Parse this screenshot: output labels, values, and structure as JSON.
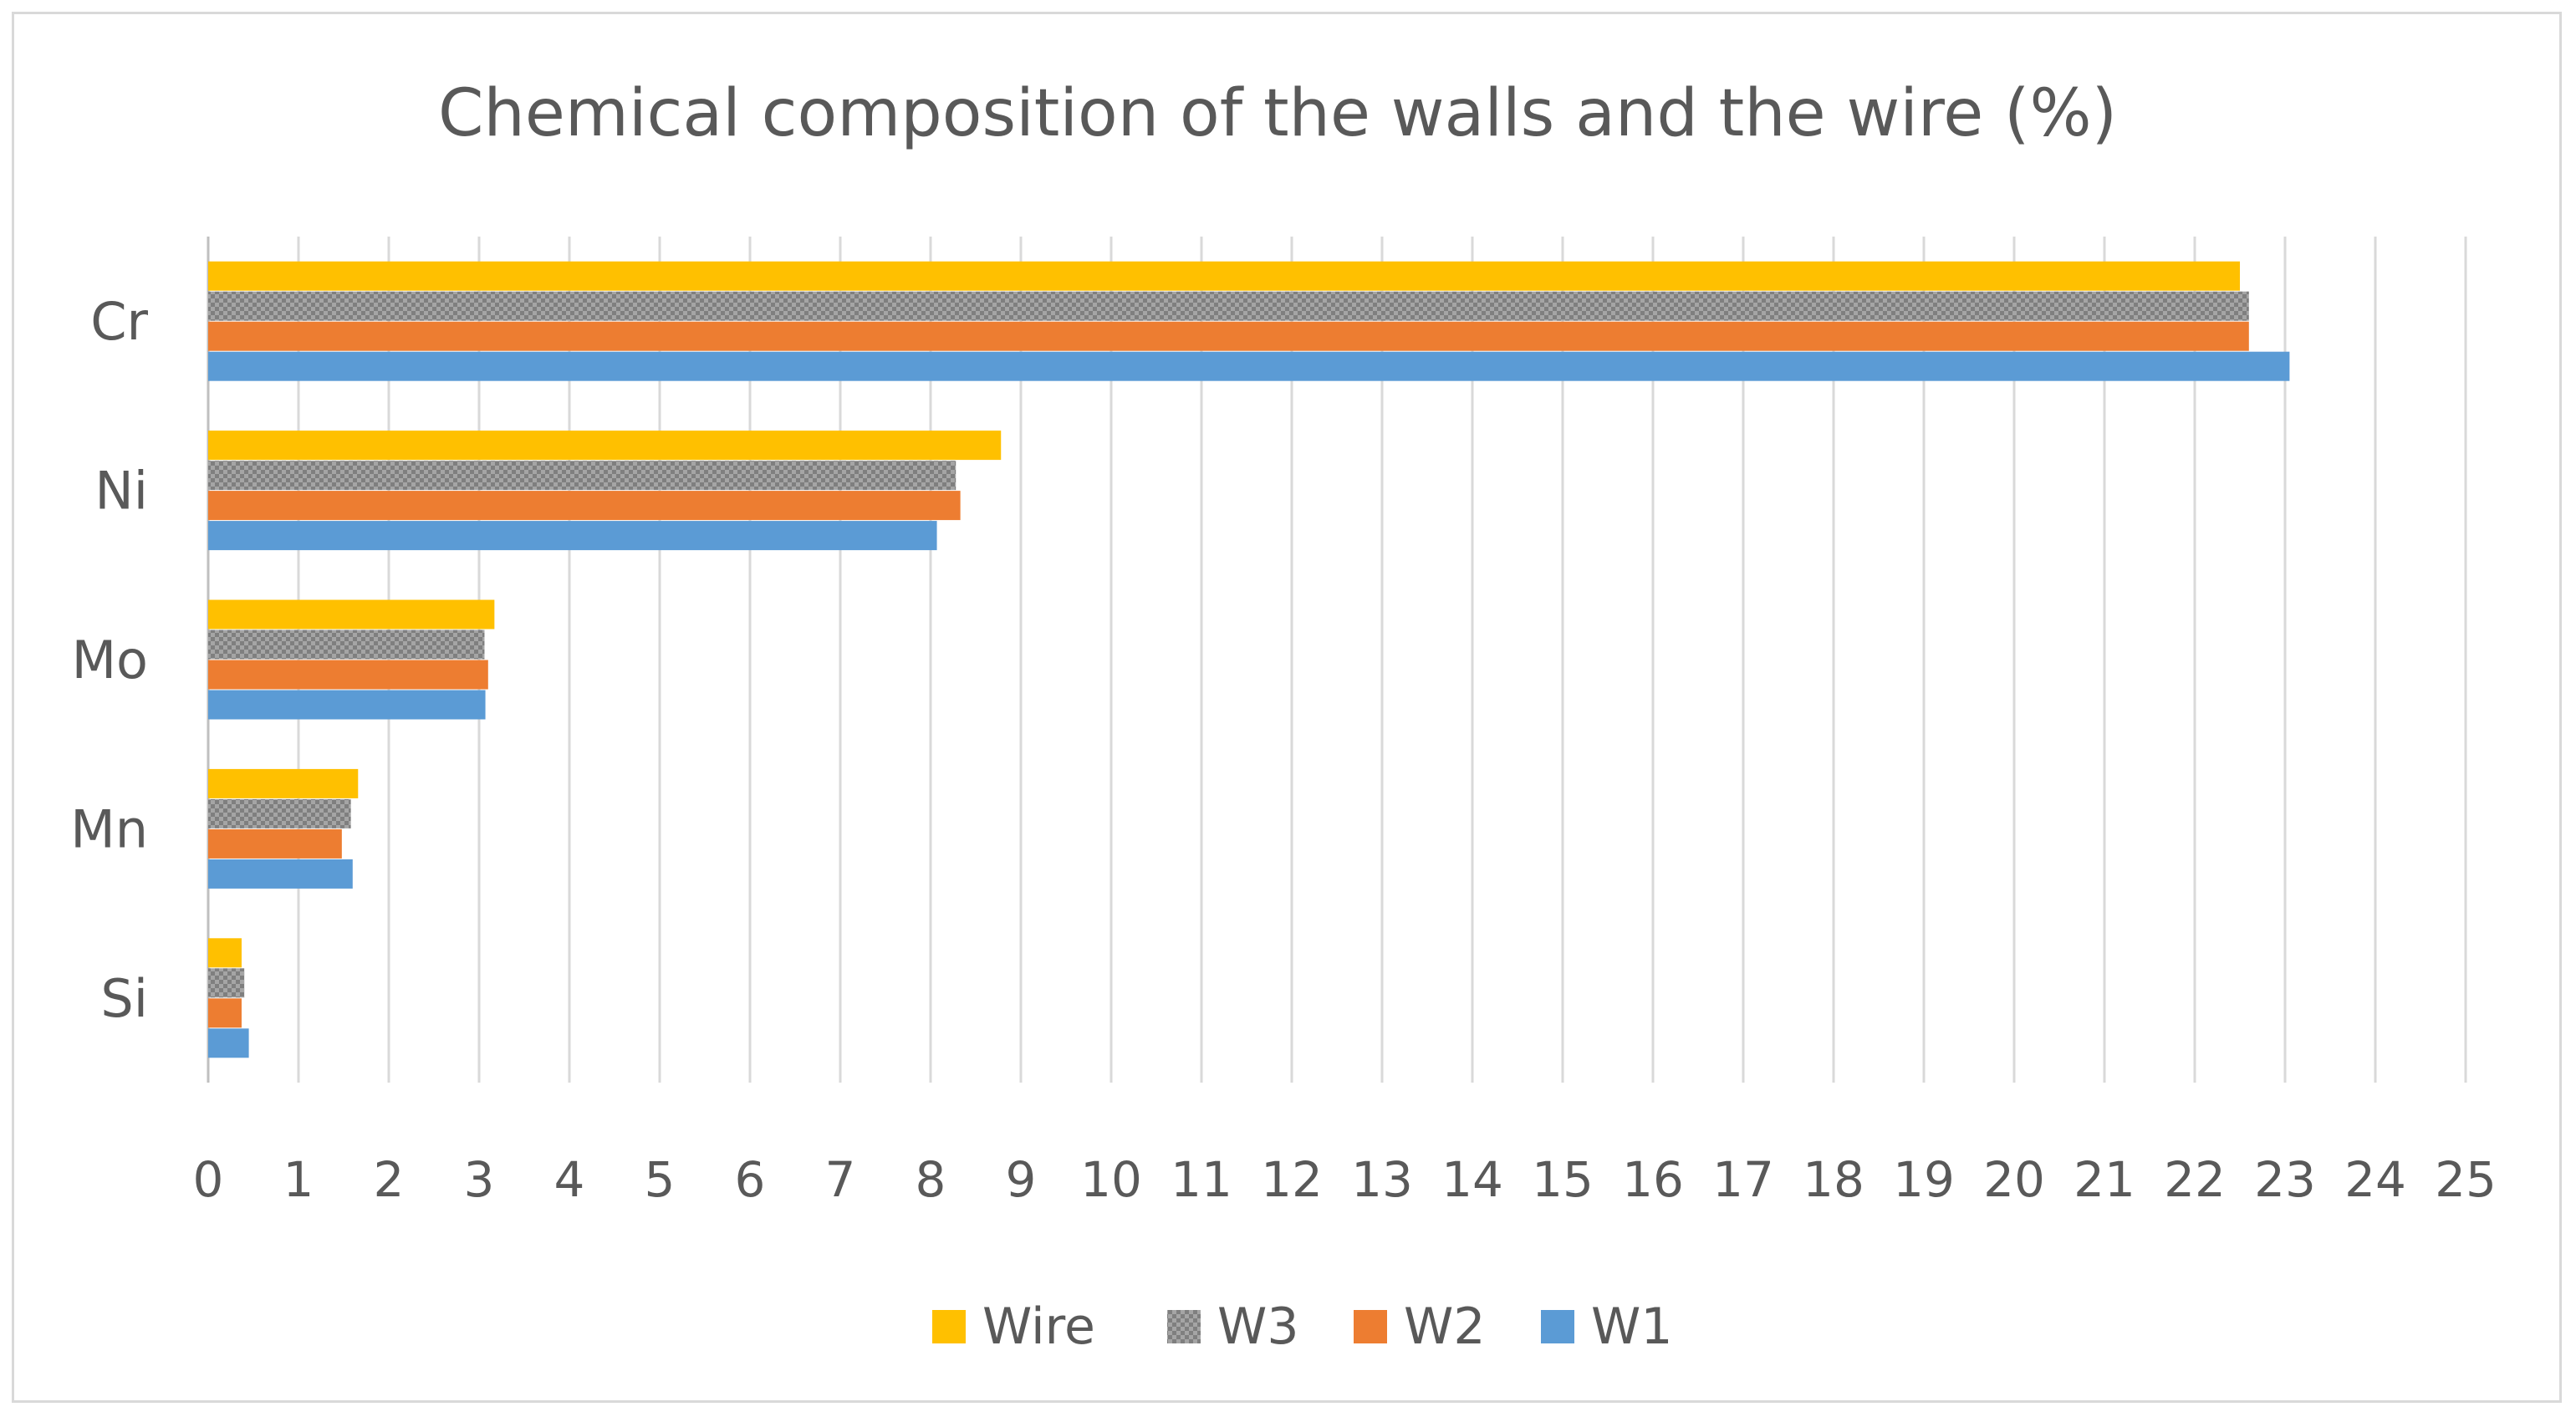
{
  "chart_data": {
    "type": "bar",
    "orientation": "horizontal",
    "title": "Chemical composition of the walls and the wire (%)",
    "xlabel": "",
    "ylabel": "",
    "categories": [
      "Si",
      "Mn",
      "Mo",
      "Ni",
      "Cr"
    ],
    "series": [
      {
        "name": "W1",
        "color": "#5b9bd5",
        "pattern": "solid",
        "values": [
          0.45,
          1.6,
          3.07,
          8.07,
          23.05
        ]
      },
      {
        "name": "W2",
        "color": "#ed7d31",
        "pattern": "solid",
        "values": [
          0.37,
          1.48,
          3.1,
          8.33,
          22.6
        ]
      },
      {
        "name": "W3",
        "color": "#a5a5a5",
        "pattern": "checker",
        "values": [
          0.4,
          1.58,
          3.06,
          8.28,
          22.6
        ]
      },
      {
        "name": "Wire",
        "color": "#ffc000",
        "pattern": "solid",
        "values": [
          0.37,
          1.66,
          3.17,
          8.78,
          22.5
        ]
      }
    ],
    "xlim": [
      0,
      25
    ],
    "x_ticks": [
      0,
      1,
      2,
      3,
      4,
      5,
      6,
      7,
      8,
      9,
      10,
      11,
      12,
      13,
      14,
      15,
      16,
      17,
      18,
      19,
      20,
      21,
      22,
      23,
      24,
      25
    ],
    "grid": "vertical",
    "legend": {
      "position": "bottom",
      "order": [
        "Wire",
        "W3",
        "W2",
        "W1"
      ]
    }
  }
}
